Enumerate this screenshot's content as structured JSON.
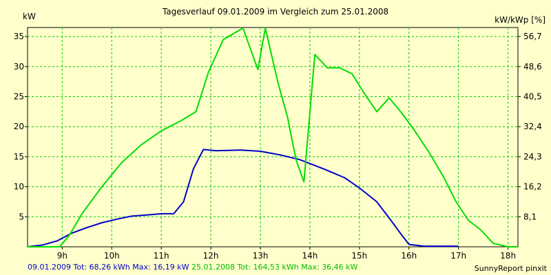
{
  "chart_data": {
    "type": "line",
    "title": "Tagesverlauf 09.01.2009 im Vergleich zum 25.01.2008",
    "ylabel": "kW",
    "y2label": "kW/kWp [%]",
    "xlim": [
      8.3,
      18.2
    ],
    "ylim": [
      0,
      36.5
    ],
    "x_ticks": [
      9,
      10,
      11,
      12,
      13,
      14,
      15,
      16,
      17,
      18
    ],
    "x_tick_labels": [
      "9h",
      "10h",
      "11h",
      "12h",
      "13h",
      "14h",
      "15h",
      "16h",
      "17h",
      "18h"
    ],
    "y_ticks": [
      5,
      10,
      15,
      20,
      25,
      30,
      35
    ],
    "y_tick_labels": [
      "5",
      "10",
      "15",
      "20",
      "25",
      "30",
      "35"
    ],
    "y2_ticks": [
      5,
      10,
      15,
      20,
      25,
      30,
      35
    ],
    "y2_tick_labels": [
      "8,1",
      "16,2",
      "24,3",
      "32,4",
      "40,5",
      "48,6",
      "56,7"
    ],
    "grid": true,
    "series": [
      {
        "name": "09.01.2009",
        "color": "#0000cc",
        "x": [
          8.3,
          8.6,
          8.9,
          9.2,
          9.5,
          9.8,
          10.1,
          10.4,
          10.7,
          11.0,
          11.25,
          11.45,
          11.65,
          11.85,
          12.1,
          12.6,
          13.0,
          13.4,
          13.8,
          14.3,
          14.7,
          15.0,
          15.35,
          15.6,
          15.85,
          16.0,
          16.3,
          16.6,
          17.0
        ],
        "values": [
          0,
          0.3,
          1.0,
          2.3,
          3.2,
          4.0,
          4.6,
          5.1,
          5.3,
          5.5,
          5.5,
          7.5,
          13.0,
          16.2,
          16.0,
          16.1,
          15.9,
          15.3,
          14.5,
          12.9,
          11.5,
          9.8,
          7.5,
          4.8,
          2.0,
          0.4,
          0.1,
          0.1,
          0.1
        ]
      },
      {
        "name": "25.01.2008",
        "color": "#00dd00",
        "x": [
          8.3,
          8.95,
          9.15,
          9.4,
          9.8,
          10.2,
          10.6,
          11.0,
          11.4,
          11.7,
          11.95,
          12.25,
          12.4,
          12.65,
          12.95,
          13.1,
          13.35,
          13.55,
          13.72,
          13.88,
          14.1,
          14.35,
          14.6,
          14.85,
          15.1,
          15.35,
          15.6,
          15.85,
          16.1,
          16.4,
          16.7,
          16.95,
          17.2,
          17.45,
          17.7,
          18.0,
          18.2
        ],
        "values": [
          0,
          0,
          2.0,
          5.5,
          10.0,
          14.0,
          17.0,
          19.3,
          21.0,
          22.5,
          29.0,
          34.5,
          35.2,
          36.4,
          29.5,
          36.4,
          27.5,
          21.5,
          14.5,
          10.8,
          32.0,
          29.8,
          29.8,
          28.8,
          25.5,
          22.5,
          24.8,
          22.3,
          19.5,
          15.8,
          11.6,
          7.5,
          4.4,
          2.8,
          0.6,
          0.0,
          0.0
        ]
      }
    ]
  },
  "footer": {
    "series1": "09.01.2009 Tot: 68,26 kWh Max: 16,19 kW",
    "series2": "25.01.2008 Tot: 164,53 kWh Max: 36,46 kW",
    "brand": "SunnyReport pinxit"
  }
}
